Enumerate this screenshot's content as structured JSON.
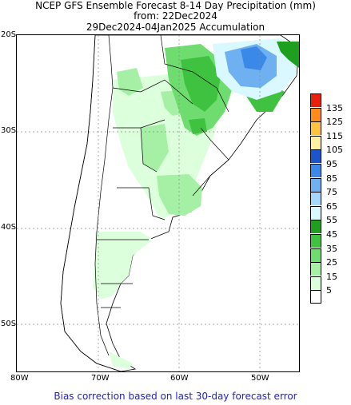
{
  "title": {
    "line1": "NCEP GFS Ensemble Forecast 8-14 Day Precipitation (mm)",
    "line2": "from: 22Dec2024",
    "line3": "29Dec2024-04Jan2025 Accumulation"
  },
  "map": {
    "region": "Southern South America (Argentina, Chile, Uruguay, southern Brazil)",
    "lat_labels": [
      "20S",
      "30S",
      "40S",
      "50S"
    ],
    "lon_labels": [
      "80W",
      "70W",
      "60W",
      "50W"
    ],
    "gridlines": "dotted",
    "precip_areas": [
      {
        "area": "southern Brazil highlands",
        "level_mm": "65-85"
      },
      {
        "area": "southern Brazil / Rio Grande do Sul",
        "level_mm": "25-55"
      },
      {
        "area": "northeast Argentina",
        "level_mm": "15-35"
      },
      {
        "area": "central Argentina / Buenos Aires",
        "level_mm": "15-25"
      },
      {
        "area": "Patagonia",
        "level_mm": "5-15"
      }
    ]
  },
  "legend": {
    "levels": [
      "135",
      "125",
      "115",
      "105",
      "95",
      "85",
      "75",
      "65",
      "55",
      "45",
      "35",
      "25",
      "15",
      "5"
    ],
    "colors": [
      "#e8200c",
      "#ff8c1a",
      "#ffc340",
      "#fff0a0",
      "#1a55cc",
      "#3a88e8",
      "#6fb0f0",
      "#a6d8fb",
      "#d9f8ff",
      "#1ea01e",
      "#3fc23f",
      "#6fdc6f",
      "#a6f0a6",
      "#dcffdc",
      "#ffffff"
    ]
  },
  "footer": "Bias correction based on last 30-day forecast error"
}
